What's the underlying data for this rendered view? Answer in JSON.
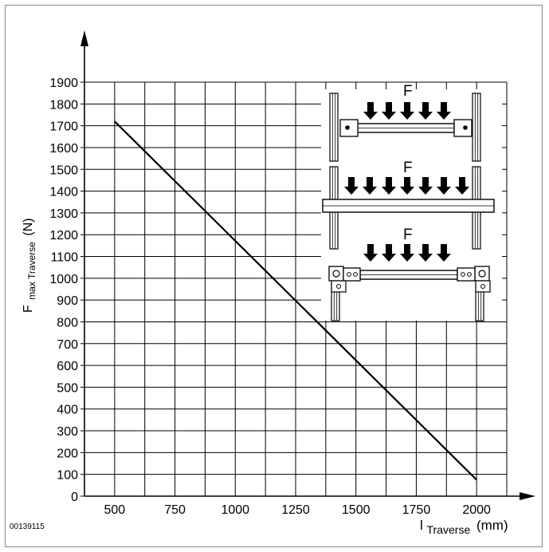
{
  "chart_data": {
    "type": "line",
    "x_label_main": "l",
    "x_label_sub": "Traverse",
    "x_label_unit": "(mm)",
    "y_label_main": "F",
    "y_label_sub": "max Traverse",
    "y_label_unit": "(N)",
    "x_ticks": [
      "500",
      "750",
      "1000",
      "1250",
      "1500",
      "1750",
      "2000"
    ],
    "y_ticks": [
      "0",
      "100",
      "200",
      "300",
      "400",
      "500",
      "600",
      "700",
      "800",
      "900",
      "1000",
      "1100",
      "1200",
      "1300",
      "1400",
      "1500",
      "1600",
      "1700",
      "1800",
      "1900"
    ],
    "xlim": [
      375,
      2125
    ],
    "ylim": [
      0,
      1900
    ],
    "grid": true,
    "series": [
      {
        "x": [
          500,
          2000
        ],
        "y": [
          1720,
          75
        ]
      }
    ]
  },
  "figure": {
    "id": "00139115",
    "force_label": "F"
  },
  "colors": {
    "line": "#000000",
    "grid": "#000000",
    "frame": "#8a8a8a"
  }
}
